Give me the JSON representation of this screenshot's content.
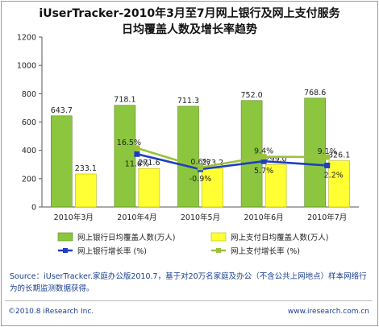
{
  "chart_data": {
    "type": "bar",
    "title": [
      "iUserTracker-2010年3月至7月网上银行及网上支付服务",
      "日均覆盖人数及增长率趋势"
    ],
    "categories": [
      "2010年3月",
      "2010年4月",
      "2010年5月",
      "2010年6月",
      "2010年7月"
    ],
    "ylim": [
      0,
      1200
    ],
    "yticks": [
      0,
      200,
      400,
      600,
      800,
      1000,
      1200
    ],
    "bar_series": [
      {
        "name": "网上银行日均覆盖人数(万人)",
        "color": "#8cc63f",
        "values": [
          643.7,
          718.1,
          711.3,
          752.0,
          768.6
        ],
        "labels": [
          "643.7",
          "718.1",
          "711.3",
          "752.0",
          "768.6"
        ]
      },
      {
        "name": "网上支付日均覆盖人数(万人)",
        "color": "#ffff33",
        "values": [
          233.1,
          271.6,
          273.2,
          299.0,
          326.1
        ],
        "labels": [
          "233.1",
          "271.6",
          "273.2",
          "299.0",
          "326.1"
        ]
      }
    ],
    "line_series": [
      {
        "name": "网上银行增长率 (%)",
        "color": "#1f3fbf",
        "values": [
          null,
          11.6,
          -0.9,
          5.7,
          2.2
        ],
        "labels": [
          "",
          "11.6%",
          "-0.9%",
          "5.7%",
          "2.2%"
        ]
      },
      {
        "name": "网上支付增长率 (%)",
        "color": "#9bc23a",
        "values": [
          null,
          16.5,
          0.6,
          9.4,
          9.1
        ],
        "labels": [
          "",
          "16.5%",
          "0.6%",
          "9.4%",
          "9.1%"
        ]
      }
    ],
    "grid": false,
    "legend_position": "bottom"
  },
  "footer": {
    "source": "Source：iUserTracker.家庭办公版2010.7，基于对20万名家庭及办公（不含公共上网地点）样本网络行为的长期监测数据获得。",
    "copyright": "©2010.8 iResearch Inc.",
    "website": "www.iresearch.com.cn"
  }
}
